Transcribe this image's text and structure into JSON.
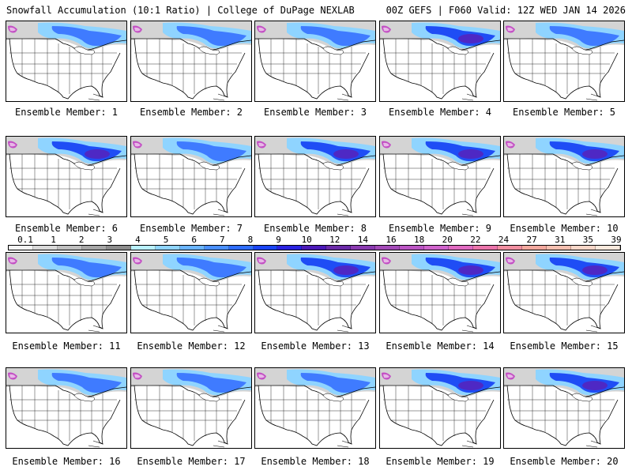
{
  "header": {
    "title": "Snowfall Accumulation (10:1 Ratio) | College of DuPage NEXLAB",
    "run_info": "00Z GEFS | F060 Valid: 12Z WED JAN 14 2026"
  },
  "members": [
    "Ensemble Member: 1",
    "Ensemble Member: 2",
    "Ensemble Member: 3",
    "Ensemble Member: 4",
    "Ensemble Member: 5",
    "Ensemble Member: 6",
    "Ensemble Member: 7",
    "Ensemble Member: 8",
    "Ensemble Member: 9",
    "Ensemble Member: 10",
    "Ensemble Member: 11",
    "Ensemble Member: 12",
    "Ensemble Member: 13",
    "Ensemble Member: 14",
    "Ensemble Member: 15",
    "Ensemble Member: 16",
    "Ensemble Member: 17",
    "Ensemble Member: 18",
    "Ensemble Member: 19",
    "Ensemble Member: 20"
  ],
  "colorbar": {
    "labels": [
      "0.1",
      "1",
      "2",
      "3",
      "4",
      "5",
      "6",
      "7",
      "8",
      "9",
      "10",
      "12",
      "14",
      "16",
      "18",
      "20",
      "22",
      "24",
      "27",
      "31",
      "35",
      "39"
    ],
    "colors": [
      "#f4f4f4",
      "#d9d9d9",
      "#bfbfbf",
      "#a5a5a5",
      "#8c8c8c",
      "#b9f0ff",
      "#8fd4ff",
      "#6ab4ff",
      "#4a8fff",
      "#2f6dff",
      "#1a45f5",
      "#2a22e0",
      "#4b19b8",
      "#6b2aa8",
      "#8a3ab0",
      "#a34ab8",
      "#bb55c4",
      "#cf63cc",
      "#e06ac0",
      "#ea74aa",
      "#f08ea0",
      "#f2a89e",
      "#f5bfb0",
      "#f8d6c8",
      "#fae8dc"
    ]
  }
}
